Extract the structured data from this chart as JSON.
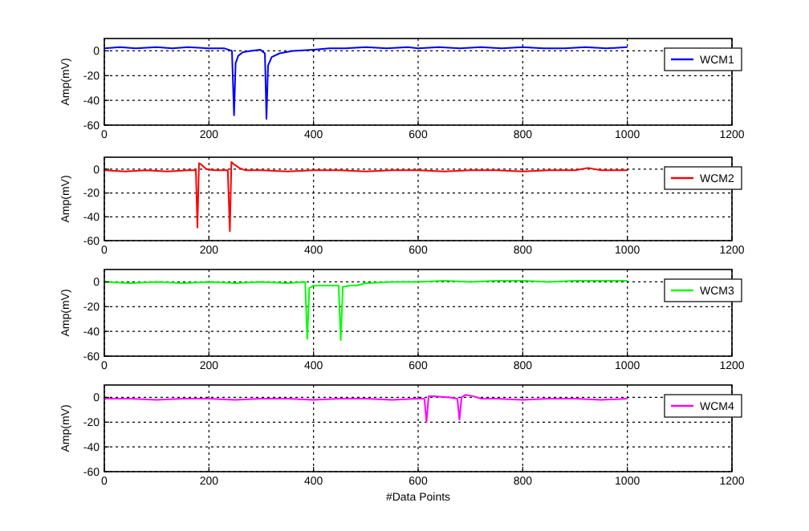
{
  "chart_data": [
    {
      "type": "line",
      "ylabel": "Amp(mV)",
      "xlim": [
        0,
        1200
      ],
      "xticks": [
        0,
        200,
        400,
        600,
        800,
        1000,
        1200
      ],
      "ylim": [
        -60,
        10
      ],
      "yticks": [
        -60,
        -40,
        -20,
        0
      ],
      "grid": true,
      "legend": "top right",
      "line_style": "solid",
      "marker": "none",
      "series": [
        {
          "name": "WCM1",
          "color": "#0000ff",
          "x": [
            0,
            30,
            60,
            100,
            130,
            160,
            200,
            230,
            244,
            248,
            251,
            256,
            265,
            280,
            298,
            307,
            310,
            313,
            320,
            335,
            360,
            400,
            430,
            460,
            500,
            540,
            580,
            600,
            640,
            680,
            720,
            760,
            800,
            840,
            880,
            920,
            960,
            1000
          ],
          "values": [
            2,
            3,
            2,
            3,
            2,
            3,
            2,
            2,
            0,
            -52,
            -10,
            -4,
            -1,
            0,
            1,
            -2,
            -55,
            -12,
            -5,
            -2,
            0,
            1,
            2,
            2,
            3,
            2,
            3,
            2,
            3,
            2,
            3,
            2,
            3,
            2,
            2,
            3,
            2,
            3
          ]
        }
      ]
    },
    {
      "type": "line",
      "ylabel": "Amp(mV)",
      "xlim": [
        0,
        1200
      ],
      "xticks": [
        0,
        200,
        400,
        600,
        800,
        1000,
        1200
      ],
      "ylim": [
        -60,
        10
      ],
      "yticks": [
        -60,
        -40,
        -20,
        0
      ],
      "grid": true,
      "legend": "top right",
      "line_style": "solid",
      "marker": "none",
      "series": [
        {
          "name": "WCM2",
          "color": "#ff0000",
          "x": [
            0,
            40,
            80,
            120,
            160,
            175,
            178,
            181,
            185,
            195,
            210,
            236,
            240,
            243,
            248,
            258,
            270,
            300,
            350,
            400,
            450,
            500,
            550,
            600,
            650,
            700,
            750,
            800,
            850,
            900,
            925,
            950,
            1000
          ],
          "values": [
            -1,
            -2,
            -1,
            -2,
            -1,
            -1,
            -49,
            5,
            4,
            0,
            -1,
            -1,
            -52,
            6,
            4,
            1,
            -1,
            -1,
            -2,
            -1,
            -1,
            -2,
            -1,
            -1,
            -2,
            -1,
            -1,
            -2,
            -1,
            -1,
            1,
            -1,
            -1
          ]
        }
      ]
    },
    {
      "type": "line",
      "ylabel": "Amp(mV)",
      "xlim": [
        0,
        1200
      ],
      "xticks": [
        0,
        200,
        400,
        600,
        800,
        1000,
        1200
      ],
      "ylim": [
        -60,
        10
      ],
      "yticks": [
        -60,
        -40,
        -20,
        0
      ],
      "grid": true,
      "legend": "top right",
      "line_style": "solid",
      "marker": "none",
      "series": [
        {
          "name": "WCM3",
          "color": "#00ff00",
          "x": [
            0,
            50,
            100,
            150,
            200,
            250,
            300,
            350,
            384,
            388,
            392,
            400,
            420,
            448,
            452,
            456,
            470,
            482,
            500,
            550,
            600,
            650,
            700,
            750,
            800,
            850,
            900,
            950,
            1000
          ],
          "values": [
            0,
            -1,
            0,
            -1,
            0,
            -1,
            0,
            -1,
            0,
            -46,
            -5,
            -3,
            -3,
            -3,
            -47,
            -4,
            -3,
            -3,
            -1,
            0,
            0,
            1,
            0,
            1,
            1,
            0,
            1,
            1,
            1
          ]
        }
      ]
    },
    {
      "type": "line",
      "ylabel": "Amp(mV)",
      "xlabel": "#Data Points",
      "xlim": [
        0,
        1200
      ],
      "xticks": [
        0,
        200,
        400,
        600,
        800,
        1000,
        1200
      ],
      "ylim": [
        -60,
        10
      ],
      "yticks": [
        -60,
        -40,
        -20,
        0
      ],
      "grid": true,
      "legend": "top right",
      "line_style": "solid",
      "marker": "none",
      "series": [
        {
          "name": "WCM4",
          "color": "#ff00ff",
          "x": [
            0,
            50,
            100,
            150,
            200,
            250,
            300,
            350,
            400,
            450,
            500,
            550,
            600,
            612,
            616,
            620,
            630,
            660,
            675,
            679,
            683,
            690,
            705,
            720,
            750,
            800,
            850,
            900,
            950,
            1000
          ],
          "values": [
            -1,
            -1,
            -2,
            -1,
            -1,
            -2,
            -1,
            -1,
            -2,
            -1,
            -1,
            -2,
            -1,
            -1,
            -20,
            1,
            1,
            0,
            -1,
            -18,
            0,
            2,
            1,
            -1,
            -1,
            -2,
            -1,
            -1,
            -2,
            -1
          ]
        }
      ]
    }
  ]
}
